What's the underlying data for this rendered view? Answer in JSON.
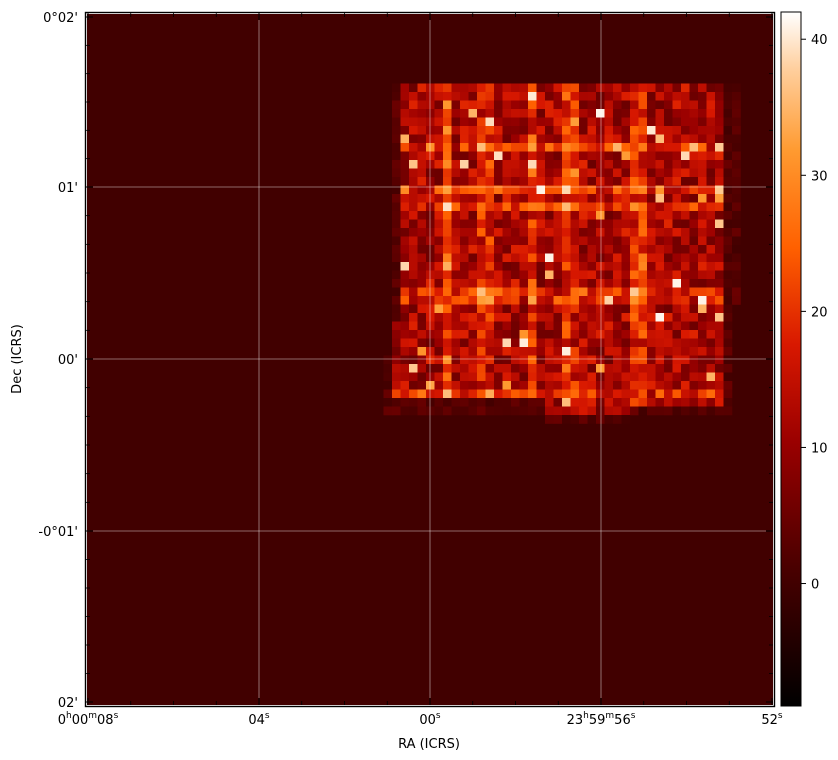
{
  "chart_data": {
    "type": "heatmap",
    "title": "",
    "xlabel": "RA (ICRS)",
    "ylabel": "Dec (ICRS)",
    "grid": true,
    "colormap": "gist_heat",
    "background_value": 0,
    "x_ticks": [
      {
        "label": "0h00m08s",
        "parts": [
          [
            "0",
            ""
          ],
          [
            "h",
            "sup"
          ],
          [
            "00",
            ""
          ],
          [
            "m",
            "sup"
          ],
          [
            "08",
            ""
          ],
          [
            "s",
            "sup"
          ]
        ]
      },
      {
        "label": "04s",
        "parts": [
          [
            "04",
            ""
          ],
          [
            "s",
            "sup"
          ]
        ]
      },
      {
        "label": "00s",
        "parts": [
          [
            "00",
            ""
          ],
          [
            "s",
            "sup"
          ]
        ]
      },
      {
        "label": "23h59m56s",
        "parts": [
          [
            "23",
            ""
          ],
          [
            "h",
            "sup"
          ],
          [
            "59",
            ""
          ],
          [
            "m",
            "sup"
          ],
          [
            "56",
            ""
          ],
          [
            "s",
            "sup"
          ]
        ]
      },
      {
        "label": "52s",
        "parts": [
          [
            "52",
            ""
          ],
          [
            "s",
            "sup"
          ]
        ]
      }
    ],
    "y_ticks": [
      "0°02'",
      "01'",
      "00'",
      "-0°01'",
      "02'"
    ],
    "colorbar": {
      "range": [
        -9,
        42
      ],
      "ticks": [
        0,
        10,
        20,
        30,
        40
      ],
      "tick_labels": [
        "0",
        "10",
        "20",
        "30",
        "40"
      ]
    }
  }
}
